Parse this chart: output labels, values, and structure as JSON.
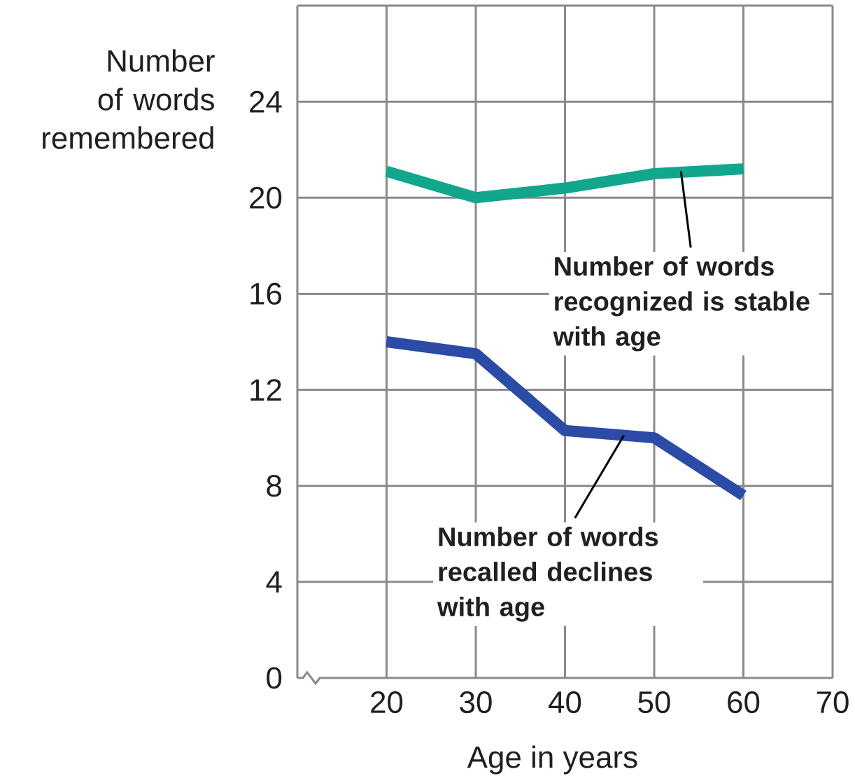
{
  "chart_data": {
    "type": "line",
    "xlabel": "Age in years",
    "ylabel": "Number of words remembered",
    "x": [
      20,
      30,
      40,
      50,
      60
    ],
    "series": [
      {
        "color": "#12a68c",
        "values": [
          21.1,
          20.0,
          20.4,
          21.0,
          21.2
        ]
      },
      {
        "color": "#2b4ba6",
        "values": [
          14.0,
          13.5,
          10.3,
          10.0,
          7.6
        ]
      }
    ],
    "xlim": [
      10,
      70
    ],
    "xticks": [
      20,
      30,
      40,
      50,
      60,
      70
    ],
    "ylim": [
      0,
      28
    ],
    "yticks": [
      0,
      4,
      8,
      12,
      16,
      20,
      24
    ],
    "grid": true,
    "annotations": [
      {
        "text": "Number of words recognized is stable with age",
        "x": 53,
        "y": 21.1
      },
      {
        "text": "Number of words recalled declines with age",
        "x": 46.6,
        "y": 10.1
      }
    ]
  }
}
